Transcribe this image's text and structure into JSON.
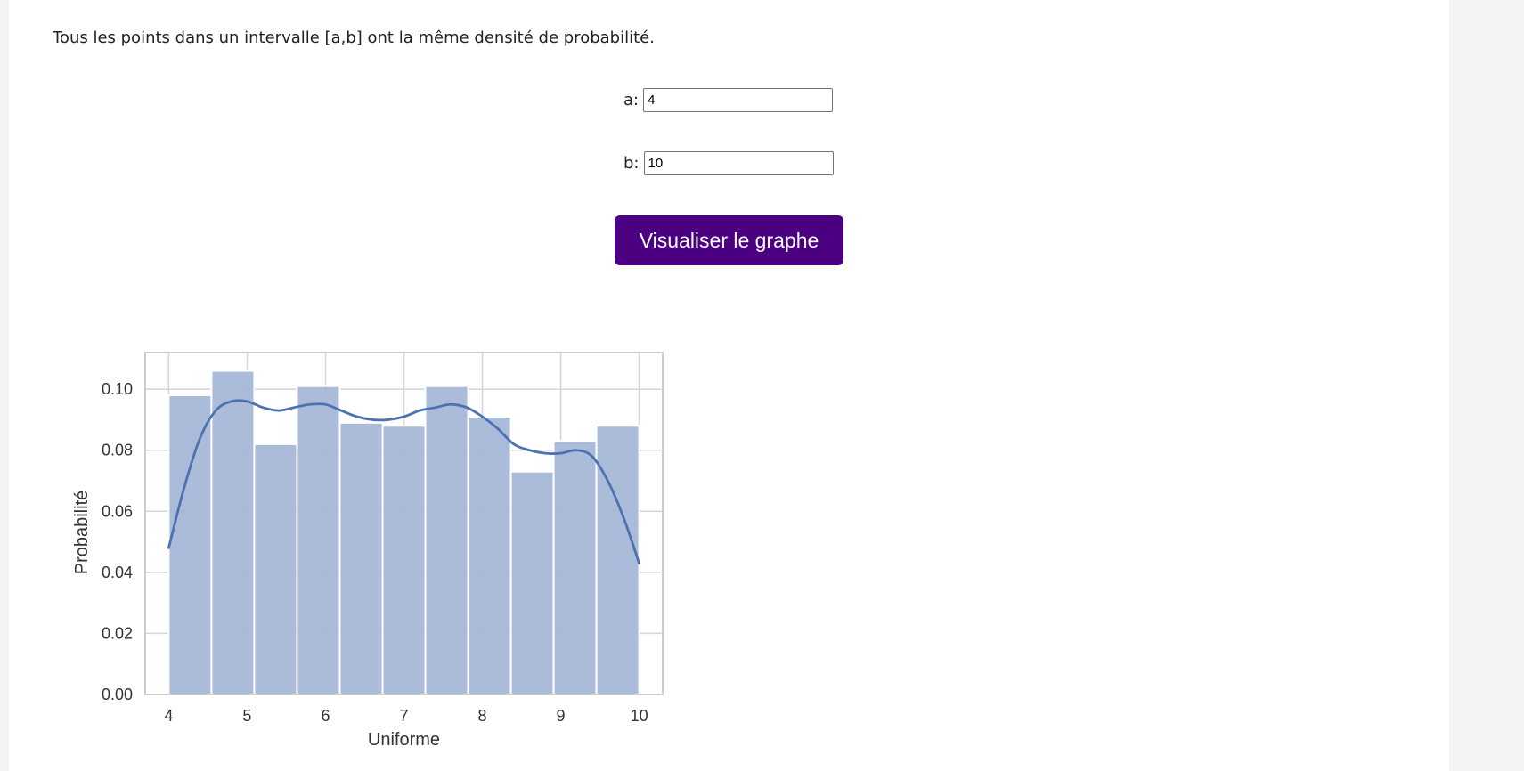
{
  "description": "Tous les points dans un intervalle [a,b] ont la même densité de probabilité.",
  "form": {
    "a_label": "a:",
    "a_value": "4",
    "b_label": "b:",
    "b_value": "10",
    "button_label": "Visualiser le graphe"
  },
  "colors": {
    "button": "#4b0082",
    "bars": "#a4b6d8",
    "kde": "#4c72b0"
  },
  "chart_data": {
    "type": "bar",
    "xlabel": "Uniforme",
    "ylabel": "Probabilité",
    "xlim": [
      4,
      10
    ],
    "ylim": [
      0,
      0.112
    ],
    "x_ticks": [
      "4",
      "5",
      "6",
      "7",
      "8",
      "9",
      "10"
    ],
    "y_ticks": [
      "0.00",
      "0.02",
      "0.04",
      "0.06",
      "0.08",
      "0.10"
    ],
    "grid": true,
    "bins": [
      {
        "start": 4.0,
        "end": 4.5455,
        "value": 0.098
      },
      {
        "start": 4.5455,
        "end": 5.0909,
        "value": 0.106
      },
      {
        "start": 5.0909,
        "end": 5.6364,
        "value": 0.082
      },
      {
        "start": 5.6364,
        "end": 6.1818,
        "value": 0.101
      },
      {
        "start": 6.1818,
        "end": 6.7273,
        "value": 0.089
      },
      {
        "start": 6.7273,
        "end": 7.2727,
        "value": 0.088
      },
      {
        "start": 7.2727,
        "end": 7.8182,
        "value": 0.101
      },
      {
        "start": 7.8182,
        "end": 8.3636,
        "value": 0.091
      },
      {
        "start": 8.3636,
        "end": 8.9091,
        "value": 0.073
      },
      {
        "start": 8.9091,
        "end": 9.4545,
        "value": 0.083
      },
      {
        "start": 9.4545,
        "end": 10.0,
        "value": 0.088
      }
    ],
    "kde": {
      "x": [
        4.0,
        4.2,
        4.4,
        4.6,
        4.8,
        5.0,
        5.2,
        5.4,
        5.6,
        5.8,
        6.0,
        6.2,
        6.4,
        6.6,
        6.8,
        7.0,
        7.2,
        7.4,
        7.6,
        7.8,
        8.0,
        8.2,
        8.4,
        8.6,
        8.8,
        9.0,
        9.2,
        9.4,
        9.6,
        9.8,
        10.0
      ],
      "y": [
        0.048,
        0.068,
        0.084,
        0.093,
        0.096,
        0.096,
        0.094,
        0.093,
        0.094,
        0.095,
        0.095,
        0.093,
        0.091,
        0.09,
        0.09,
        0.091,
        0.093,
        0.094,
        0.095,
        0.094,
        0.091,
        0.087,
        0.082,
        0.08,
        0.079,
        0.079,
        0.08,
        0.078,
        0.07,
        0.058,
        0.043
      ]
    }
  }
}
